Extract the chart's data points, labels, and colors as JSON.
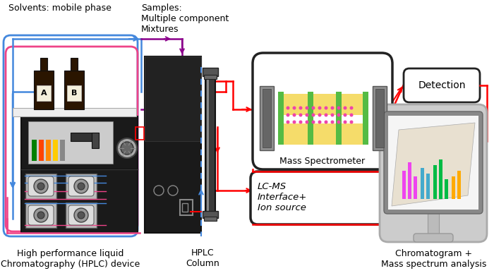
{
  "bg_color": "#ffffff",
  "label_solvents": "Solvents: mobile phase",
  "label_samples": "Samples:\nMultiple component\nMixtures",
  "label_hplc_device": "High performance liquid\nChromatography (HPLC) device",
  "label_hplc_column": "HPLC\nColumn",
  "label_mass_spec": "Mass Spectrometer",
  "label_detection": "Detection",
  "label_lcms": "LC-MS\nInterface+\nIon source",
  "label_chromatogram": "Chromatogram +\nMass spectrum analysis"
}
